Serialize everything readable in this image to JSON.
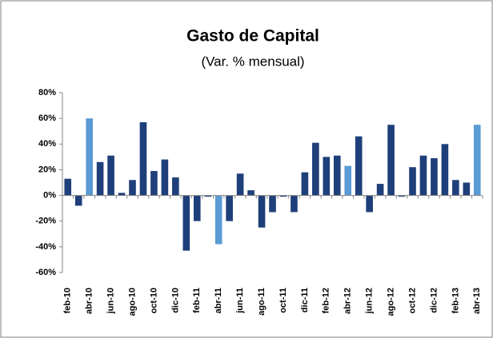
{
  "chart_data": {
    "type": "bar",
    "title": "Gasto de Capital",
    "subtitle": "(Var. % mensual)",
    "categories": [
      "feb-10",
      null,
      "abr-10",
      null,
      "jun-10",
      null,
      "ago-10",
      null,
      "oct-10",
      null,
      "dic-10",
      null,
      "feb-11",
      null,
      "abr-11",
      null,
      "jun-11",
      null,
      "ago-11",
      null,
      "oct-11",
      null,
      "dic-11",
      null,
      "feb-12",
      null,
      "abr-12",
      null,
      "jun-12",
      null,
      "ago-12",
      null,
      "oct-12",
      null,
      "dic-12",
      null,
      "feb-13",
      null,
      "abr-13"
    ],
    "values": [
      13,
      -8,
      60,
      26,
      31,
      2,
      12,
      57,
      19,
      28,
      14,
      -43,
      -20,
      -1,
      -38,
      -20,
      17,
      4,
      -25,
      -13,
      -1,
      -13,
      18,
      41,
      30,
      31,
      23,
      46,
      -13,
      9,
      55,
      -1,
      22,
      31,
      29,
      40,
      12,
      10,
      55
    ],
    "colors": [
      "#1f3f7a",
      "#1f3f7a",
      "#5b9bd5",
      "#1f3f7a",
      "#1f3f7a",
      "#1f3f7a",
      "#1f3f7a",
      "#1f3f7a",
      "#1f3f7a",
      "#1f3f7a",
      "#1f3f7a",
      "#1f3f7a",
      "#1f3f7a",
      "#1f3f7a",
      "#5b9bd5",
      "#1f3f7a",
      "#1f3f7a",
      "#1f3f7a",
      "#1f3f7a",
      "#1f3f7a",
      "#1f3f7a",
      "#1f3f7a",
      "#1f3f7a",
      "#1f3f7a",
      "#1f3f7a",
      "#1f3f7a",
      "#5b9bd5",
      "#1f3f7a",
      "#1f3f7a",
      "#1f3f7a",
      "#1f3f7a",
      "#1f3f7a",
      "#1f3f7a",
      "#1f3f7a",
      "#1f3f7a",
      "#1f3f7a",
      "#1f3f7a",
      "#1f3f7a",
      "#5b9bd5"
    ],
    "ylim": [
      -60,
      80
    ],
    "yticks": [
      {
        "value": -60,
        "label": "-60%"
      },
      {
        "value": -40,
        "label": "-40%"
      },
      {
        "value": -20,
        "label": "-20%"
      },
      {
        "value": 0,
        "label": "0%"
      },
      {
        "value": 20,
        "label": "20%"
      },
      {
        "value": 40,
        "label": "40%"
      },
      {
        "value": 60,
        "label": "60%"
      },
      {
        "value": 80,
        "label": "80%"
      }
    ],
    "grid": false
  }
}
